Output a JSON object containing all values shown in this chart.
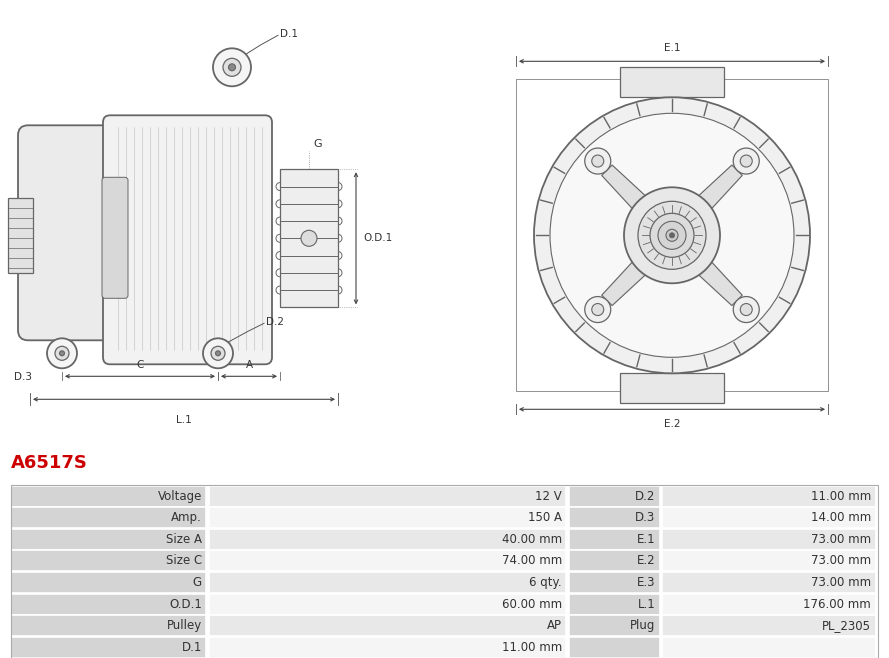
{
  "title": "A6517S",
  "title_color": "#cc0000",
  "bg_color": "#ffffff",
  "table_rows": [
    [
      "Voltage",
      "12 V",
      "D.2",
      "11.00 mm"
    ],
    [
      "Amp.",
      "150 A",
      "D.3",
      "14.00 mm"
    ],
    [
      "Size A",
      "40.00 mm",
      "E.1",
      "73.00 mm"
    ],
    [
      "Size C",
      "74.00 mm",
      "E.2",
      "73.00 mm"
    ],
    [
      "G",
      "6 qty.",
      "E.3",
      "73.00 mm"
    ],
    [
      "O.D.1",
      "60.00 mm",
      "L.1",
      "176.00 mm"
    ],
    [
      "Pulley",
      "AP",
      "Plug",
      "PL_2305"
    ],
    [
      "D.1",
      "11.00 mm",
      "",
      ""
    ]
  ],
  "row_colors": [
    "#e8e8e8",
    "#f5f5f5"
  ],
  "text_color": "#333333",
  "lc": "#666666",
  "lc2": "#999999"
}
